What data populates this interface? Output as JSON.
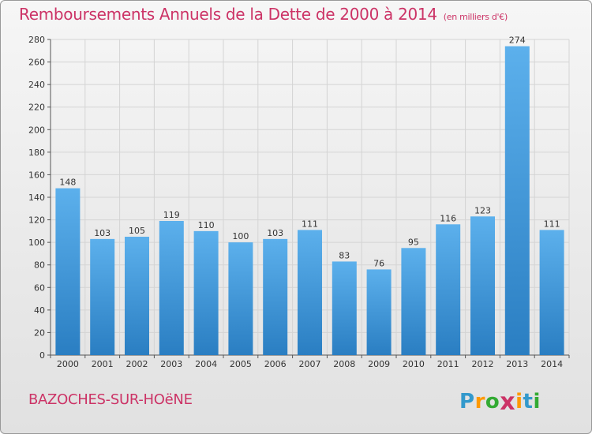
{
  "chart_data": {
    "type": "bar",
    "title": "Remboursements Annuels de la Dette de 2000 à 2014",
    "unit_note": "(en milliers d'€)",
    "categories": [
      "2000",
      "2001",
      "2002",
      "2003",
      "2004",
      "2005",
      "2006",
      "2007",
      "2008",
      "2009",
      "2010",
      "2011",
      "2012",
      "2013",
      "2014"
    ],
    "values": [
      148,
      103,
      105,
      119,
      110,
      100,
      103,
      111,
      83,
      76,
      95,
      116,
      123,
      274,
      111
    ],
    "ylim": [
      0,
      280
    ],
    "yticks": [
      0,
      20,
      40,
      60,
      80,
      100,
      120,
      140,
      160,
      180,
      200,
      220,
      240,
      260,
      280
    ],
    "grid": true,
    "bar_color_top": "#5cb0ec",
    "bar_color_bottom": "#2a7ec2"
  },
  "footer": {
    "commune": "BAZOCHES-SUR-HOëNE"
  },
  "brand": {
    "name": "Proxiti",
    "letters": [
      "P",
      "r",
      "o",
      "x",
      "i",
      "t",
      "i"
    ],
    "letter_colors": [
      "#3399cc",
      "#ff9900",
      "#33aa33",
      "#cc3366",
      "#ff9900",
      "#3399cc",
      "#33aa33"
    ]
  }
}
